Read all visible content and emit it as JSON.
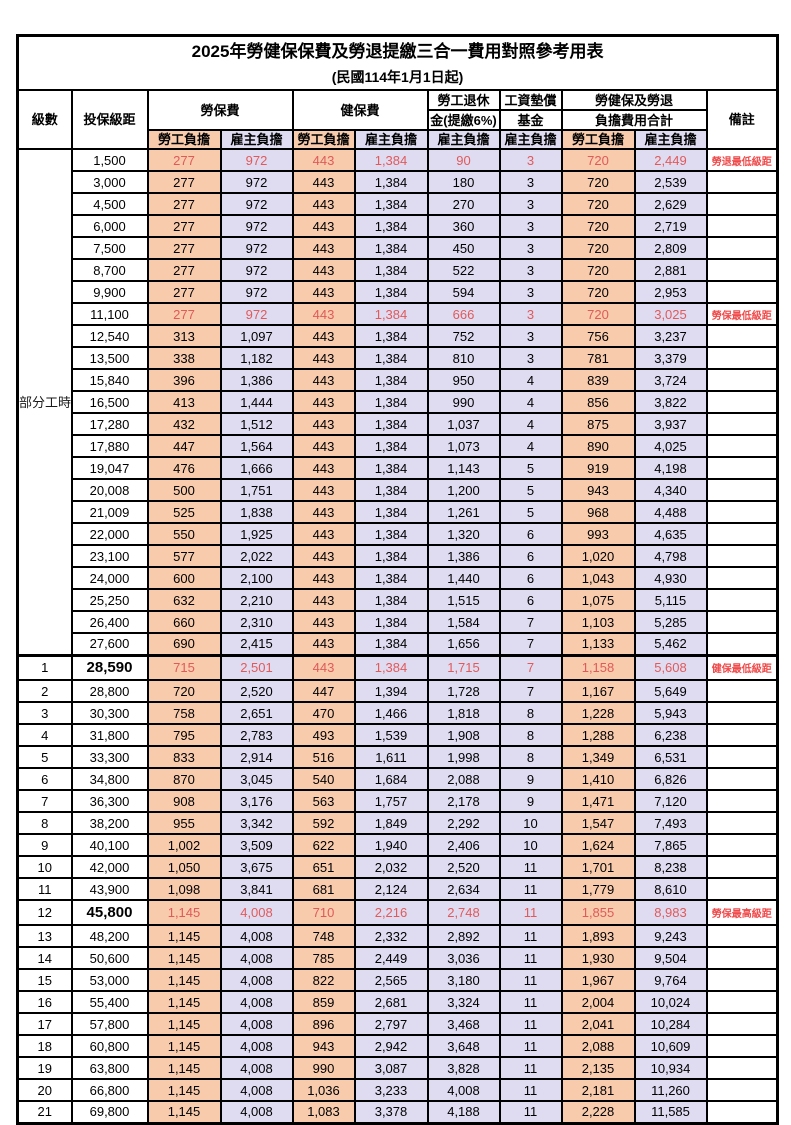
{
  "title": "2025年勞健保保費及勞退提繳三合一費用對照參考用表",
  "subtitle": "(民國114年1月1日起)",
  "columns": {
    "grade": "級數",
    "bracket": "投保級距",
    "labor_fee": "勞保費",
    "health_fee": "健保費",
    "pension_line1": "勞工退休",
    "pension_line2": "金(提繳6%)",
    "wage_fund_line1": "工資墊償",
    "wage_fund_line2": "基金",
    "total_line1": "勞健保及勞退",
    "total_line2": "負擔費用合計",
    "note": "備註",
    "worker_burden": "勞工負擔",
    "employer_burden": "雇主負擔"
  },
  "part_time_label": "部分工時",
  "colors": {
    "worker_bg": "#F8CBAD",
    "employer_bg": "#DFDCF2",
    "highlight_text": "#E05A5A",
    "note_text": "#F04A4A",
    "border": "#000000"
  },
  "rows": [
    {
      "grade": "",
      "bracket": "1,500",
      "values": [
        "277",
        "972",
        "443",
        "1,384",
        "90",
        "3",
        "720",
        "2,449"
      ],
      "note": "勞退最低級距",
      "red": true,
      "big": false,
      "sep": false
    },
    {
      "grade": "",
      "bracket": "3,000",
      "values": [
        "277",
        "972",
        "443",
        "1,384",
        "180",
        "3",
        "720",
        "2,539"
      ],
      "note": "",
      "red": false,
      "big": false,
      "sep": false
    },
    {
      "grade": "",
      "bracket": "4,500",
      "values": [
        "277",
        "972",
        "443",
        "1,384",
        "270",
        "3",
        "720",
        "2,629"
      ],
      "note": "",
      "red": false,
      "big": false,
      "sep": false
    },
    {
      "grade": "",
      "bracket": "6,000",
      "values": [
        "277",
        "972",
        "443",
        "1,384",
        "360",
        "3",
        "720",
        "2,719"
      ],
      "note": "",
      "red": false,
      "big": false,
      "sep": false
    },
    {
      "grade": "",
      "bracket": "7,500",
      "values": [
        "277",
        "972",
        "443",
        "1,384",
        "450",
        "3",
        "720",
        "2,809"
      ],
      "note": "",
      "red": false,
      "big": false,
      "sep": false
    },
    {
      "grade": "",
      "bracket": "8,700",
      "values": [
        "277",
        "972",
        "443",
        "1,384",
        "522",
        "3",
        "720",
        "2,881"
      ],
      "note": "",
      "red": false,
      "big": false,
      "sep": false
    },
    {
      "grade": "",
      "bracket": "9,900",
      "values": [
        "277",
        "972",
        "443",
        "1,384",
        "594",
        "3",
        "720",
        "2,953"
      ],
      "note": "",
      "red": false,
      "big": false,
      "sep": false
    },
    {
      "grade": "",
      "bracket": "11,100",
      "values": [
        "277",
        "972",
        "443",
        "1,384",
        "666",
        "3",
        "720",
        "3,025"
      ],
      "note": "勞保最低級距",
      "red": true,
      "big": false,
      "sep": false
    },
    {
      "grade": "",
      "bracket": "12,540",
      "values": [
        "313",
        "1,097",
        "443",
        "1,384",
        "752",
        "3",
        "756",
        "3,237"
      ],
      "note": "",
      "red": false,
      "big": false,
      "sep": false
    },
    {
      "grade": "",
      "bracket": "13,500",
      "values": [
        "338",
        "1,182",
        "443",
        "1,384",
        "810",
        "3",
        "781",
        "3,379"
      ],
      "note": "",
      "red": false,
      "big": false,
      "sep": false
    },
    {
      "grade": "",
      "bracket": "15,840",
      "values": [
        "396",
        "1,386",
        "443",
        "1,384",
        "950",
        "4",
        "839",
        "3,724"
      ],
      "note": "",
      "red": false,
      "big": false,
      "sep": false
    },
    {
      "grade": "",
      "bracket": "16,500",
      "values": [
        "413",
        "1,444",
        "443",
        "1,384",
        "990",
        "4",
        "856",
        "3,822"
      ],
      "note": "",
      "red": false,
      "big": false,
      "sep": false
    },
    {
      "grade": "",
      "bracket": "17,280",
      "values": [
        "432",
        "1,512",
        "443",
        "1,384",
        "1,037",
        "4",
        "875",
        "3,937"
      ],
      "note": "",
      "red": false,
      "big": false,
      "sep": false
    },
    {
      "grade": "",
      "bracket": "17,880",
      "values": [
        "447",
        "1,564",
        "443",
        "1,384",
        "1,073",
        "4",
        "890",
        "4,025"
      ],
      "note": "",
      "red": false,
      "big": false,
      "sep": false
    },
    {
      "grade": "",
      "bracket": "19,047",
      "values": [
        "476",
        "1,666",
        "443",
        "1,384",
        "1,143",
        "5",
        "919",
        "4,198"
      ],
      "note": "",
      "red": false,
      "big": false,
      "sep": false
    },
    {
      "grade": "",
      "bracket": "20,008",
      "values": [
        "500",
        "1,751",
        "443",
        "1,384",
        "1,200",
        "5",
        "943",
        "4,340"
      ],
      "note": "",
      "red": false,
      "big": false,
      "sep": false
    },
    {
      "grade": "",
      "bracket": "21,009",
      "values": [
        "525",
        "1,838",
        "443",
        "1,384",
        "1,261",
        "5",
        "968",
        "4,488"
      ],
      "note": "",
      "red": false,
      "big": false,
      "sep": false
    },
    {
      "grade": "",
      "bracket": "22,000",
      "values": [
        "550",
        "1,925",
        "443",
        "1,384",
        "1,320",
        "6",
        "993",
        "4,635"
      ],
      "note": "",
      "red": false,
      "big": false,
      "sep": false
    },
    {
      "grade": "",
      "bracket": "23,100",
      "values": [
        "577",
        "2,022",
        "443",
        "1,384",
        "1,386",
        "6",
        "1,020",
        "4,798"
      ],
      "note": "",
      "red": false,
      "big": false,
      "sep": false
    },
    {
      "grade": "",
      "bracket": "24,000",
      "values": [
        "600",
        "2,100",
        "443",
        "1,384",
        "1,440",
        "6",
        "1,043",
        "4,930"
      ],
      "note": "",
      "red": false,
      "big": false,
      "sep": false
    },
    {
      "grade": "",
      "bracket": "25,250",
      "values": [
        "632",
        "2,210",
        "443",
        "1,384",
        "1,515",
        "6",
        "1,075",
        "5,115"
      ],
      "note": "",
      "red": false,
      "big": false,
      "sep": false
    },
    {
      "grade": "",
      "bracket": "26,400",
      "values": [
        "660",
        "2,310",
        "443",
        "1,384",
        "1,584",
        "7",
        "1,103",
        "5,285"
      ],
      "note": "",
      "red": false,
      "big": false,
      "sep": false
    },
    {
      "grade": "",
      "bracket": "27,600",
      "values": [
        "690",
        "2,415",
        "443",
        "1,384",
        "1,656",
        "7",
        "1,133",
        "5,462"
      ],
      "note": "",
      "red": false,
      "big": false,
      "sep": false
    },
    {
      "grade": "1",
      "bracket": "28,590",
      "values": [
        "715",
        "2,501",
        "443",
        "1,384",
        "1,715",
        "7",
        "1,158",
        "5,608"
      ],
      "note": "健保最低級距",
      "red": true,
      "big": true,
      "sep": true
    },
    {
      "grade": "2",
      "bracket": "28,800",
      "values": [
        "720",
        "2,520",
        "447",
        "1,394",
        "1,728",
        "7",
        "1,167",
        "5,649"
      ],
      "note": "",
      "red": false,
      "big": false,
      "sep": false
    },
    {
      "grade": "3",
      "bracket": "30,300",
      "values": [
        "758",
        "2,651",
        "470",
        "1,466",
        "1,818",
        "8",
        "1,228",
        "5,943"
      ],
      "note": "",
      "red": false,
      "big": false,
      "sep": false
    },
    {
      "grade": "4",
      "bracket": "31,800",
      "values": [
        "795",
        "2,783",
        "493",
        "1,539",
        "1,908",
        "8",
        "1,288",
        "6,238"
      ],
      "note": "",
      "red": false,
      "big": false,
      "sep": false
    },
    {
      "grade": "5",
      "bracket": "33,300",
      "values": [
        "833",
        "2,914",
        "516",
        "1,611",
        "1,998",
        "8",
        "1,349",
        "6,531"
      ],
      "note": "",
      "red": false,
      "big": false,
      "sep": false
    },
    {
      "grade": "6",
      "bracket": "34,800",
      "values": [
        "870",
        "3,045",
        "540",
        "1,684",
        "2,088",
        "9",
        "1,410",
        "6,826"
      ],
      "note": "",
      "red": false,
      "big": false,
      "sep": false
    },
    {
      "grade": "7",
      "bracket": "36,300",
      "values": [
        "908",
        "3,176",
        "563",
        "1,757",
        "2,178",
        "9",
        "1,471",
        "7,120"
      ],
      "note": "",
      "red": false,
      "big": false,
      "sep": false
    },
    {
      "grade": "8",
      "bracket": "38,200",
      "values": [
        "955",
        "3,342",
        "592",
        "1,849",
        "2,292",
        "10",
        "1,547",
        "7,493"
      ],
      "note": "",
      "red": false,
      "big": false,
      "sep": false
    },
    {
      "grade": "9",
      "bracket": "40,100",
      "values": [
        "1,002",
        "3,509",
        "622",
        "1,940",
        "2,406",
        "10",
        "1,624",
        "7,865"
      ],
      "note": "",
      "red": false,
      "big": false,
      "sep": false
    },
    {
      "grade": "10",
      "bracket": "42,000",
      "values": [
        "1,050",
        "3,675",
        "651",
        "2,032",
        "2,520",
        "11",
        "1,701",
        "8,238"
      ],
      "note": "",
      "red": false,
      "big": false,
      "sep": false
    },
    {
      "grade": "11",
      "bracket": "43,900",
      "values": [
        "1,098",
        "3,841",
        "681",
        "2,124",
        "2,634",
        "11",
        "1,779",
        "8,610"
      ],
      "note": "",
      "red": false,
      "big": false,
      "sep": false
    },
    {
      "grade": "12",
      "bracket": "45,800",
      "values": [
        "1,145",
        "4,008",
        "710",
        "2,216",
        "2,748",
        "11",
        "1,855",
        "8,983"
      ],
      "note": "勞保最高級距",
      "red": true,
      "big": true,
      "sep": false
    },
    {
      "grade": "13",
      "bracket": "48,200",
      "values": [
        "1,145",
        "4,008",
        "748",
        "2,332",
        "2,892",
        "11",
        "1,893",
        "9,243"
      ],
      "note": "",
      "red": false,
      "big": false,
      "sep": false
    },
    {
      "grade": "14",
      "bracket": "50,600",
      "values": [
        "1,145",
        "4,008",
        "785",
        "2,449",
        "3,036",
        "11",
        "1,930",
        "9,504"
      ],
      "note": "",
      "red": false,
      "big": false,
      "sep": false
    },
    {
      "grade": "15",
      "bracket": "53,000",
      "values": [
        "1,145",
        "4,008",
        "822",
        "2,565",
        "3,180",
        "11",
        "1,967",
        "9,764"
      ],
      "note": "",
      "red": false,
      "big": false,
      "sep": false
    },
    {
      "grade": "16",
      "bracket": "55,400",
      "values": [
        "1,145",
        "4,008",
        "859",
        "2,681",
        "3,324",
        "11",
        "2,004",
        "10,024"
      ],
      "note": "",
      "red": false,
      "big": false,
      "sep": false
    },
    {
      "grade": "17",
      "bracket": "57,800",
      "values": [
        "1,145",
        "4,008",
        "896",
        "2,797",
        "3,468",
        "11",
        "2,041",
        "10,284"
      ],
      "note": "",
      "red": false,
      "big": false,
      "sep": false
    },
    {
      "grade": "18",
      "bracket": "60,800",
      "values": [
        "1,145",
        "4,008",
        "943",
        "2,942",
        "3,648",
        "11",
        "2,088",
        "10,609"
      ],
      "note": "",
      "red": false,
      "big": false,
      "sep": false
    },
    {
      "grade": "19",
      "bracket": "63,800",
      "values": [
        "1,145",
        "4,008",
        "990",
        "3,087",
        "3,828",
        "11",
        "2,135",
        "10,934"
      ],
      "note": "",
      "red": false,
      "big": false,
      "sep": false
    },
    {
      "grade": "20",
      "bracket": "66,800",
      "values": [
        "1,145",
        "4,008",
        "1,036",
        "3,233",
        "4,008",
        "11",
        "2,181",
        "11,260"
      ],
      "note": "",
      "red": false,
      "big": false,
      "sep": false
    },
    {
      "grade": "21",
      "bracket": "69,800",
      "values": [
        "1,145",
        "4,008",
        "1,083",
        "3,378",
        "4,188",
        "11",
        "2,228",
        "11,585"
      ],
      "note": "",
      "red": false,
      "big": false,
      "sep": false
    }
  ],
  "value_column_burden_pattern": [
    "worker",
    "employer",
    "worker",
    "employer",
    "employer",
    "employer",
    "worker",
    "employer"
  ],
  "part_time_row_count": 23
}
